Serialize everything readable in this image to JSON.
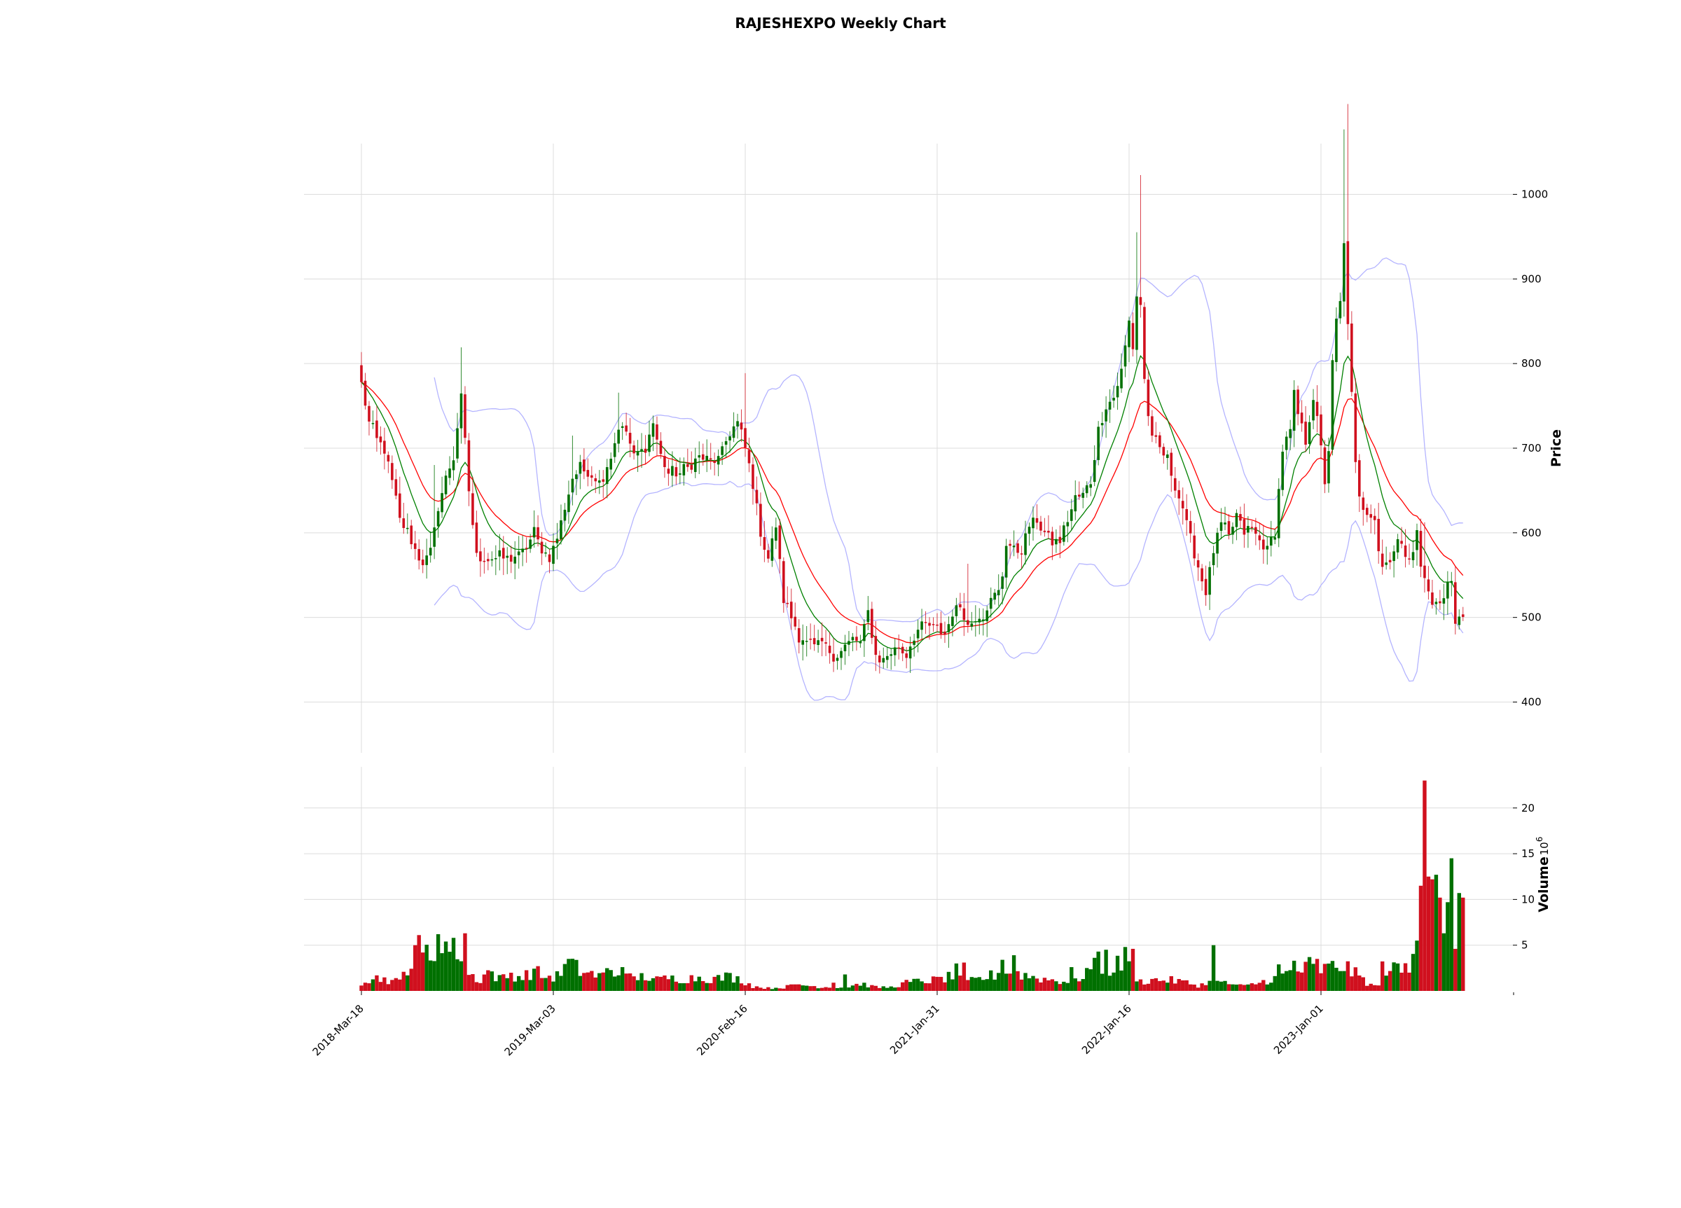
{
  "chart_data": {
    "type": "candlestick",
    "title": "RAJESHEXPO Weekly Chart",
    "colors": {
      "up": "#007000",
      "down": "#d0101e",
      "ma_short": "#008000",
      "ma_long": "#ff0000",
      "bollinger": "#b4b4ff",
      "grid": "#dcdcdc"
    },
    "price_axis": {
      "label": "Price",
      "ticks": [
        400,
        500,
        600,
        700,
        800,
        900,
        1000
      ],
      "range": [
        340,
        1060
      ]
    },
    "volume_axis": {
      "label": "Volume",
      "unit_exponent": "10^6",
      "ticks": [
        5,
        10,
        15,
        20
      ],
      "range": [
        0,
        24.5
      ]
    },
    "x_axis": {
      "ticks": [
        {
          "label": "2018-Mar-18",
          "index": 0
        },
        {
          "label": "2019-Mar-03",
          "index": 50
        },
        {
          "label": "2020-Feb-16",
          "index": 100
        },
        {
          "label": "2021-Jan-31",
          "index": 150
        },
        {
          "label": "2022-Jan-16",
          "index": 200
        },
        {
          "label": "2023-Jan-01",
          "index": 250
        }
      ]
    },
    "close_anchors": [
      [
        0,
        775
      ],
      [
        2,
        730
      ],
      [
        4,
        710
      ],
      [
        6,
        700
      ],
      [
        8,
        660
      ],
      [
        10,
        615
      ],
      [
        12,
        600
      ],
      [
        14,
        580
      ],
      [
        16,
        565
      ],
      [
        18,
        575
      ],
      [
        20,
        630
      ],
      [
        22,
        665
      ],
      [
        24,
        690
      ],
      [
        26,
        760
      ],
      [
        28,
        650
      ],
      [
        30,
        570
      ],
      [
        33,
        570
      ],
      [
        38,
        570
      ],
      [
        42,
        575
      ],
      [
        45,
        600
      ],
      [
        47,
        580
      ],
      [
        49,
        570
      ],
      [
        51,
        595
      ],
      [
        53,
        630
      ],
      [
        55,
        665
      ],
      [
        57,
        675
      ],
      [
        60,
        670
      ],
      [
        62,
        660
      ],
      [
        65,
        690
      ],
      [
        67,
        725
      ],
      [
        69,
        720
      ],
      [
        71,
        690
      ],
      [
        74,
        700
      ],
      [
        76,
        730
      ],
      [
        78,
        690
      ],
      [
        80,
        670
      ],
      [
        83,
        670
      ],
      [
        86,
        680
      ],
      [
        88,
        690
      ],
      [
        90,
        685
      ],
      [
        93,
        685
      ],
      [
        96,
        720
      ],
      [
        98,
        730
      ],
      [
        100,
        700
      ],
      [
        102,
        660
      ],
      [
        104,
        600
      ],
      [
        106,
        570
      ],
      [
        108,
        610
      ],
      [
        110,
        520
      ],
      [
        112,
        500
      ],
      [
        114,
        480
      ],
      [
        116,
        470
      ],
      [
        118,
        465
      ],
      [
        120,
        470
      ],
      [
        122,
        460
      ],
      [
        124,
        455
      ],
      [
        126,
        465
      ],
      [
        128,
        475
      ],
      [
        130,
        470
      ],
      [
        132,
        505
      ],
      [
        134,
        455
      ],
      [
        136,
        450
      ],
      [
        138,
        460
      ],
      [
        140,
        465
      ],
      [
        142,
        455
      ],
      [
        144,
        480
      ],
      [
        146,
        490
      ],
      [
        148,
        490
      ],
      [
        150,
        485
      ],
      [
        152,
        480
      ],
      [
        154,
        505
      ],
      [
        156,
        515
      ],
      [
        158,
        490
      ],
      [
        160,
        500
      ],
      [
        162,
        505
      ],
      [
        164,
        520
      ],
      [
        166,
        530
      ],
      [
        167,
        550
      ],
      [
        168,
        590
      ],
      [
        170,
        580
      ],
      [
        172,
        580
      ],
      [
        174,
        610
      ],
      [
        176,
        615
      ],
      [
        178,
        600
      ],
      [
        180,
        590
      ],
      [
        182,
        590
      ],
      [
        184,
        615
      ],
      [
        186,
        640
      ],
      [
        188,
        645
      ],
      [
        190,
        660
      ],
      [
        192,
        720
      ],
      [
        194,
        750
      ],
      [
        196,
        760
      ],
      [
        198,
        790
      ],
      [
        199,
        820
      ],
      [
        200,
        850
      ],
      [
        201,
        820
      ],
      [
        202,
        880
      ],
      [
        203,
        870
      ],
      [
        204,
        780
      ],
      [
        205,
        740
      ],
      [
        206,
        710
      ],
      [
        208,
        700
      ],
      [
        210,
        685
      ],
      [
        212,
        655
      ],
      [
        214,
        630
      ],
      [
        216,
        590
      ],
      [
        218,
        560
      ],
      [
        220,
        530
      ],
      [
        222,
        580
      ],
      [
        224,
        610
      ],
      [
        226,
        595
      ],
      [
        228,
        620
      ],
      [
        230,
        600
      ],
      [
        232,
        605
      ],
      [
        234,
        590
      ],
      [
        236,
        580
      ],
      [
        238,
        600
      ],
      [
        239,
        650
      ],
      [
        240,
        700
      ],
      [
        242,
        720
      ],
      [
        243,
        760
      ],
      [
        244,
        740
      ],
      [
        246,
        710
      ],
      [
        248,
        760
      ],
      [
        250,
        700
      ],
      [
        251,
        660
      ],
      [
        252,
        700
      ],
      [
        253,
        800
      ],
      [
        254,
        850
      ],
      [
        255,
        870
      ],
      [
        256,
        940
      ],
      [
        257,
        850
      ],
      [
        258,
        760
      ],
      [
        259,
        680
      ],
      [
        260,
        640
      ],
      [
        262,
        625
      ],
      [
        264,
        620
      ],
      [
        265,
        580
      ],
      [
        266,
        560
      ],
      [
        268,
        570
      ],
      [
        270,
        590
      ],
      [
        272,
        575
      ],
      [
        274,
        580
      ],
      [
        275,
        600
      ],
      [
        276,
        560
      ],
      [
        278,
        530
      ],
      [
        280,
        515
      ],
      [
        282,
        520
      ],
      [
        283,
        540
      ],
      [
        284,
        545
      ],
      [
        285,
        500
      ]
    ],
    "volume_anchors": [
      [
        0,
        0.9
      ],
      [
        2,
        1.2
      ],
      [
        4,
        1.5
      ],
      [
        6,
        1.3
      ],
      [
        8,
        1.1
      ],
      [
        10,
        1.0
      ],
      [
        12,
        2.8
      ],
      [
        14,
        3.3
      ],
      [
        15,
        4.5
      ],
      [
        17,
        4.2
      ],
      [
        19,
        3.8
      ],
      [
        21,
        4.0
      ],
      [
        22,
        5.0
      ],
      [
        24,
        5.3
      ],
      [
        26,
        4.0
      ],
      [
        27,
        2.0
      ],
      [
        29,
        1.6
      ],
      [
        31,
        1.2
      ],
      [
        33,
        2.2
      ],
      [
        36,
        1.3
      ],
      [
        39,
        1.8
      ],
      [
        42,
        1.5
      ],
      [
        45,
        2.2
      ],
      [
        48,
        1.5
      ],
      [
        51,
        1.6
      ],
      [
        53,
        2.5
      ],
      [
        55,
        2.8
      ],
      [
        57,
        2.2
      ],
      [
        59,
        2.0
      ],
      [
        62,
        1.6
      ],
      [
        65,
        2.3
      ],
      [
        68,
        1.5
      ],
      [
        71,
        1.4
      ],
      [
        74,
        1.6
      ],
      [
        77,
        1.2
      ],
      [
        80,
        1.4
      ],
      [
        84,
        1.3
      ],
      [
        88,
        1.5
      ],
      [
        92,
        1.3
      ],
      [
        96,
        1.6
      ],
      [
        100,
        1.0
      ],
      [
        102,
        0.5
      ],
      [
        106,
        0.3
      ],
      [
        110,
        0.4
      ],
      [
        114,
        0.7
      ],
      [
        118,
        0.5
      ],
      [
        122,
        0.4
      ],
      [
        126,
        0.4
      ],
      [
        130,
        0.8
      ],
      [
        134,
        0.4
      ],
      [
        138,
        0.4
      ],
      [
        142,
        0.9
      ],
      [
        146,
        1.1
      ],
      [
        150,
        1.2
      ],
      [
        153,
        1.5
      ],
      [
        155,
        1.3
      ],
      [
        158,
        1.0
      ],
      [
        162,
        1.4
      ],
      [
        166,
        1.9
      ],
      [
        170,
        2.0
      ],
      [
        174,
        1.6
      ],
      [
        178,
        1.3
      ],
      [
        182,
        1.1
      ],
      [
        186,
        1.0
      ],
      [
        189,
        2.2
      ],
      [
        192,
        2.8
      ],
      [
        195,
        2.5
      ],
      [
        198,
        3.0
      ],
      [
        201,
        2.2
      ],
      [
        203,
        1.0
      ],
      [
        206,
        1.2
      ],
      [
        210,
        1.2
      ],
      [
        214,
        1.0
      ],
      [
        218,
        0.6
      ],
      [
        222,
        1.0
      ],
      [
        226,
        0.8
      ],
      [
        230,
        0.5
      ],
      [
        234,
        0.9
      ],
      [
        238,
        1.4
      ],
      [
        241,
        1.9
      ],
      [
        244,
        2.2
      ],
      [
        247,
        2.5
      ],
      [
        250,
        2.3
      ],
      [
        253,
        2.6
      ],
      [
        256,
        2.8
      ],
      [
        258,
        2.1
      ],
      [
        260,
        1.6
      ],
      [
        262,
        0.9
      ],
      [
        264,
        0.5
      ],
      [
        266,
        2.5
      ],
      [
        268,
        2.6
      ],
      [
        270,
        2.0
      ],
      [
        272,
        2.5
      ],
      [
        274,
        5.0
      ],
      [
        276,
        12.0
      ],
      [
        278,
        12.0
      ],
      [
        280,
        9.0
      ],
      [
        282,
        10.0
      ],
      [
        283,
        8.5
      ],
      [
        285,
        10.0
      ]
    ],
    "volume_spikes": [
      [
        1,
        0.9
      ],
      [
        4,
        1.7
      ],
      [
        14,
        5.0
      ],
      [
        16,
        4.2
      ],
      [
        20,
        6.2
      ],
      [
        24,
        5.8
      ],
      [
        27,
        6.3
      ],
      [
        54,
        3.5
      ],
      [
        68,
        2.6
      ],
      [
        123,
        0.9
      ],
      [
        126,
        1.8
      ],
      [
        155,
        3.0
      ],
      [
        157,
        3.1
      ],
      [
        167,
        3.4
      ],
      [
        170,
        3.9
      ],
      [
        185,
        2.6
      ],
      [
        192,
        4.3
      ],
      [
        194,
        4.5
      ],
      [
        199,
        4.8
      ],
      [
        201,
        4.6
      ],
      [
        222,
        5.0
      ],
      [
        239,
        2.9
      ],
      [
        243,
        3.3
      ],
      [
        247,
        3.7
      ],
      [
        249,
        3.5
      ],
      [
        265,
        0.6
      ],
      [
        270,
        3.0
      ],
      [
        273,
        2.0
      ],
      [
        275,
        5.5
      ],
      [
        276,
        11.5
      ],
      [
        277,
        23.0
      ],
      [
        278,
        12.5
      ],
      [
        279,
        12.2
      ],
      [
        280,
        12.7
      ],
      [
        281,
        10.2
      ],
      [
        282,
        6.3
      ],
      [
        283,
        9.7
      ],
      [
        284,
        14.5
      ],
      [
        285,
        4.6
      ],
      [
        286,
        10.7
      ],
      [
        287,
        10.2
      ]
    ],
    "wick_spikes": [
      [
        19,
        55
      ],
      [
        26,
        40
      ],
      [
        55,
        35
      ],
      [
        67,
        25
      ],
      [
        100,
        55
      ],
      [
        158,
        60
      ],
      [
        202,
        70
      ],
      [
        203,
        140
      ],
      [
        256,
        120
      ],
      [
        257,
        155
      ],
      [
        277,
        40
      ]
    ],
    "ma_short_period": 10,
    "ma_long_period": 20,
    "bollinger_period": 20,
    "bollinger_k": 2
  }
}
